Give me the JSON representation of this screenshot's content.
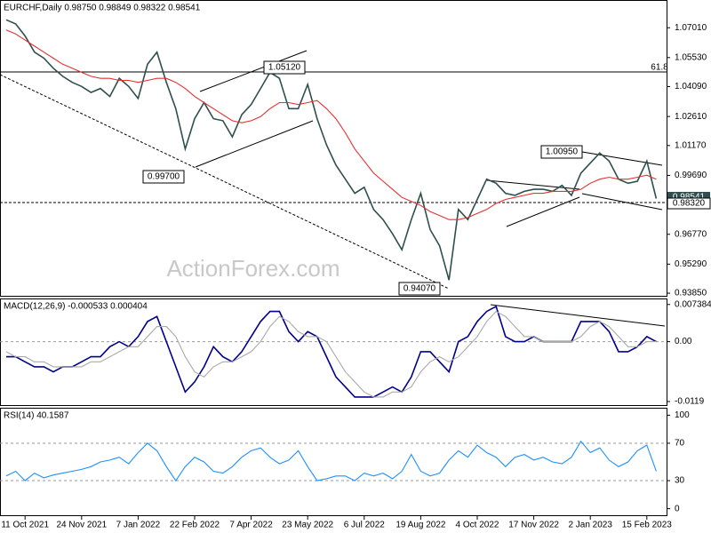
{
  "chart_data": [
    {
      "type": "line",
      "title": "EURCHF,Daily  0.98750 0.98849 0.98322 0.98541",
      "watermark": "ActionForex.com",
      "ylim": [
        0.9372,
        1.0834
      ],
      "yticks": [
        {
          "value": 1.0701,
          "label": "1.07010"
        },
        {
          "value": 1.0553,
          "label": "1.05530"
        },
        {
          "value": 1.0409,
          "label": "1.04090"
        },
        {
          "value": 1.0261,
          "label": "1.02610"
        },
        {
          "value": 1.0117,
          "label": "1.01170"
        },
        {
          "value": 0.9969,
          "label": "0.99690"
        },
        {
          "value": 0.9677,
          "label": "0.96770"
        },
        {
          "value": 0.9529,
          "label": "0.95290"
        },
        {
          "value": 0.9385,
          "label": "0.93850"
        }
      ],
      "series": [
        {
          "name": "EURCHF",
          "color": "#2f4f4f",
          "values": [
            1.074,
            1.072,
            1.066,
            1.058,
            1.055,
            1.05,
            1.046,
            1.043,
            1.041,
            1.038,
            1.04,
            1.036,
            1.045,
            1.041,
            1.035,
            1.052,
            1.058,
            1.043,
            1.03,
            1.01,
            1.025,
            1.033,
            1.025,
            1.024,
            1.016,
            1.027,
            1.032,
            1.04,
            1.048,
            1.045,
            1.03,
            1.03,
            1.042,
            1.025,
            1.012,
            1.002,
            0.995,
            0.988,
            0.991,
            0.98,
            0.975,
            0.968,
            0.96,
            0.975,
            0.988,
            0.97,
            0.962,
            0.945,
            0.98,
            0.975,
            0.985,
            0.995,
            0.993,
            0.988,
            0.987,
            0.989,
            0.99,
            0.99,
            0.989,
            0.992,
            0.987,
            0.998,
            1.003,
            1.008,
            1.004,
            0.995,
            0.993,
            0.994,
            1.004,
            0.98541
          ]
        },
        {
          "name": "MA",
          "color": "#e53030",
          "values": [
            1.069,
            1.067,
            1.064,
            1.061,
            1.058,
            1.055,
            1.052,
            1.05,
            1.048,
            1.046,
            1.045,
            1.045,
            1.044,
            1.044,
            1.043,
            1.044,
            1.045,
            1.045,
            1.043,
            1.04,
            1.036,
            1.033,
            1.03,
            1.027,
            1.024,
            1.023,
            1.024,
            1.026,
            1.03,
            1.033,
            1.033,
            1.032,
            1.033,
            1.034,
            1.03,
            1.025,
            1.018,
            1.01,
            1.004,
            0.998,
            0.994,
            0.99,
            0.986,
            0.984,
            0.982,
            0.979,
            0.977,
            0.975,
            0.975,
            0.976,
            0.978,
            0.98,
            0.983,
            0.985,
            0.986,
            0.987,
            0.988,
            0.988,
            0.989,
            0.989,
            0.989,
            0.99,
            0.993,
            0.995,
            0.996,
            0.995,
            0.995,
            0.996,
            0.997,
            0.995
          ]
        }
      ],
      "annotations": [
        "1.05120",
        "0.99700",
        "0.94070",
        "1.00950",
        "61.8",
        "0.98541",
        "0.98320"
      ]
    },
    {
      "type": "line",
      "title": "MACD(12,26,9) -0.000533 0.000404",
      "ylim": [
        -0.0126,
        0.0084
      ],
      "yticks": [
        0.007384,
        {
          "value": 0,
          "label": "0.00"
        },
        -0.0119
      ],
      "level_lines": [
        0
      ],
      "series": [
        {
          "name": "MACD",
          "color": "#00008b",
          "values": [
            -0.003,
            -0.003,
            -0.004,
            -0.005,
            -0.005,
            -0.006,
            -0.005,
            -0.005,
            -0.004,
            -0.003,
            -0.003,
            -0.001,
            0,
            -0.001,
            0.001,
            0.004,
            0.005,
            0,
            -0.005,
            -0.01,
            -0.008,
            -0.005,
            -0.001,
            -0.003,
            -0.004,
            -0.002,
            0.001,
            0.004,
            0.006,
            0.006,
            0.002,
            0,
            0.002,
            0.001,
            -0.003,
            -0.007,
            -0.009,
            -0.011,
            -0.011,
            -0.011,
            -0.01,
            -0.009,
            -0.01,
            -0.007,
            -0.002,
            -0.002,
            -0.004,
            -0.006,
            0,
            0.001,
            0.004,
            0.006,
            0.007,
            0.001,
            0,
            0,
            0.001,
            0,
            0,
            0,
            0,
            0.004,
            0.004,
            0.004,
            0.002,
            -0.002,
            -0.002,
            -0.001,
            0.001,
            0
          ]
        },
        {
          "name": "Signal",
          "color": "#a9a9a9",
          "values": [
            -0.002,
            -0.003,
            -0.003,
            -0.004,
            -0.004,
            -0.005,
            -0.005,
            -0.005,
            -0.005,
            -0.004,
            -0.004,
            -0.003,
            -0.002,
            -0.001,
            -0.001,
            0.001,
            0.003,
            0.003,
            0.001,
            -0.003,
            -0.006,
            -0.007,
            -0.005,
            -0.004,
            -0.004,
            -0.003,
            -0.002,
            0,
            0.003,
            0.005,
            0.004,
            0.002,
            0.001,
            0.001,
            0,
            -0.003,
            -0.006,
            -0.008,
            -0.01,
            -0.011,
            -0.011,
            -0.01,
            -0.01,
            -0.009,
            -0.006,
            -0.004,
            -0.003,
            -0.004,
            -0.003,
            -0.001,
            0.001,
            0.004,
            0.006,
            0.005,
            0.003,
            0.001,
            0.001,
            0,
            0,
            0,
            0,
            0.001,
            0.003,
            0.004,
            0.003,
            0.001,
            -0.001,
            -0.001,
            0,
            0
          ]
        }
      ]
    },
    {
      "type": "line",
      "title": "RSI(14) 40.1587",
      "ylim": [
        -7,
        107
      ],
      "yticks": [
        100,
        70,
        30,
        0
      ],
      "level_lines": [
        70,
        30
      ],
      "categories": [
        null,
        null,
        "11 Oct 2021",
        null,
        null,
        null,
        null,
        null,
        "24 Nov 2021",
        null,
        null,
        null,
        null,
        null,
        "7 Jan 2022",
        null,
        null,
        null,
        null,
        null,
        "22 Feb 2022",
        null,
        null,
        null,
        null,
        null,
        "7 Apr 2022",
        null,
        null,
        null,
        null,
        null,
        "23 May 2022",
        null,
        null,
        null,
        null,
        null,
        "6 Jul 2022",
        null,
        null,
        null,
        null,
        null,
        "19 Aug 2022",
        null,
        null,
        null,
        null,
        null,
        "4 Oct 2022",
        null,
        null,
        null,
        null,
        null,
        "17 Nov 2022",
        null,
        null,
        null,
        null,
        null,
        "2 Jan 2023",
        null,
        null,
        null,
        null,
        null,
        "15 Feb 2023",
        null
      ],
      "series": [
        {
          "name": "RSI",
          "color": "#1e90ff",
          "values": [
            35,
            40,
            30,
            38,
            33,
            36,
            38,
            40,
            42,
            45,
            50,
            52,
            55,
            48,
            60,
            70,
            62,
            45,
            30,
            45,
            55,
            50,
            40,
            38,
            45,
            55,
            62,
            65,
            55,
            48,
            52,
            62,
            45,
            30,
            32,
            35,
            35,
            30,
            38,
            35,
            38,
            32,
            40,
            58,
            40,
            35,
            38,
            52,
            62,
            55,
            68,
            60,
            55,
            45,
            55,
            58,
            52,
            55,
            50,
            48,
            55,
            72,
            60,
            65,
            52,
            45,
            50,
            62,
            68,
            40.1587
          ]
        }
      ]
    }
  ]
}
